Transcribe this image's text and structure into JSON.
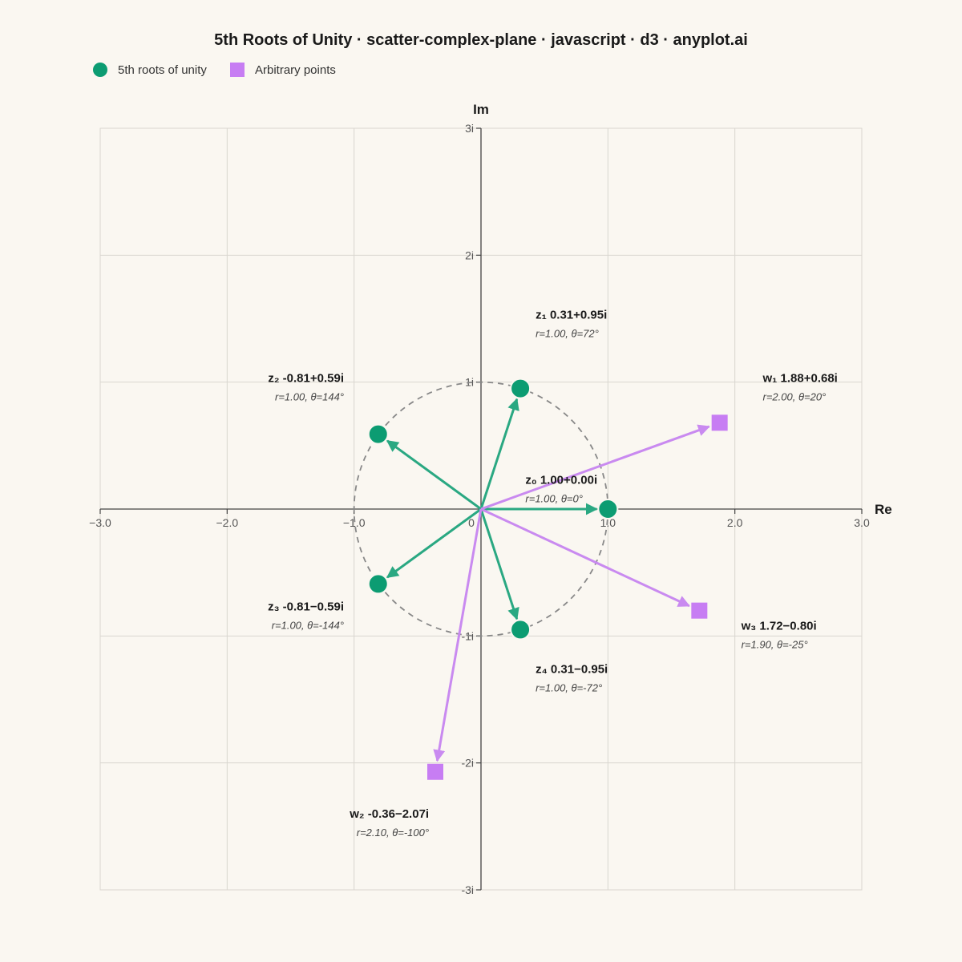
{
  "chart_data": {
    "type": "scatter",
    "title": "5th Roots of Unity · scatter-complex-plane · javascript · d3 · anyplot.ai",
    "xlabel": "Re",
    "ylabel": "Im",
    "xlim": [
      -3,
      3
    ],
    "ylim": [
      -3,
      3
    ],
    "grid": true,
    "legend_position": "top-left",
    "x_ticks": [
      {
        "value": -3,
        "label": "−3.0"
      },
      {
        "value": -2,
        "label": "−2.0"
      },
      {
        "value": -1,
        "label": "−1.0"
      },
      {
        "value": 0,
        "label": "0"
      },
      {
        "value": 1,
        "label": "1.0"
      },
      {
        "value": 2,
        "label": "2.0"
      },
      {
        "value": 3,
        "label": "3.0"
      }
    ],
    "y_ticks": [
      {
        "value": 3,
        "label": "3i"
      },
      {
        "value": 2,
        "label": "2i"
      },
      {
        "value": 1,
        "label": "1i"
      },
      {
        "value": -1,
        "label": "-1i"
      },
      {
        "value": -2,
        "label": "-2i"
      },
      {
        "value": -3,
        "label": "-3i"
      }
    ],
    "unit_circle": {
      "radius": 1,
      "style": "dashed"
    },
    "series": [
      {
        "name": "5th roots of unity",
        "marker": "circle",
        "color": "#0C9C72",
        "vector_color": "#2AA882",
        "points": [
          {
            "x": 1.0,
            "y": 0.0,
            "label": "z₀ 1.00+0.00i",
            "sub": "r=1.00, θ=0°",
            "anchor": "start",
            "lx": 0.35,
            "ly": 0.2
          },
          {
            "x": 0.31,
            "y": 0.95,
            "label": "z₁ 0.31+0.95i",
            "sub": "r=1.00, θ=72°",
            "anchor": "start",
            "lx": 0.43,
            "ly": 1.5
          },
          {
            "x": -0.81,
            "y": 0.59,
            "label": "z₂ -0.81+0.59i",
            "sub": "r=1.00, θ=144°",
            "anchor": "end",
            "lx": -1.08,
            "ly": 1.0
          },
          {
            "x": -0.81,
            "y": -0.59,
            "label": "z₃ -0.81−0.59i",
            "sub": "r=1.00, θ=-144°",
            "anchor": "end",
            "lx": -1.08,
            "ly": -0.8
          },
          {
            "x": 0.31,
            "y": -0.95,
            "label": "z₄ 0.31−0.95i",
            "sub": "r=1.00, θ=-72°",
            "anchor": "start",
            "lx": 0.43,
            "ly": -1.29
          }
        ]
      },
      {
        "name": "Arbitrary points",
        "marker": "square",
        "color": "#C77DF3",
        "vector_color": "#C98AF0",
        "points": [
          {
            "x": 1.88,
            "y": 0.68,
            "label": "w₁ 1.88+0.68i",
            "sub": "r=2.00, θ=20°",
            "anchor": "start",
            "lx": 2.22,
            "ly": 1.0
          },
          {
            "x": -0.36,
            "y": -2.07,
            "label": "w₂ -0.36−2.07i",
            "sub": "r=2.10, θ=-100°",
            "anchor": "end",
            "lx": -0.41,
            "ly": -2.43
          },
          {
            "x": 1.72,
            "y": -0.8,
            "label": "w₃ 1.72−0.80i",
            "sub": "r=1.90, θ=-25°",
            "anchor": "start",
            "lx": 2.05,
            "ly": -0.95
          }
        ]
      }
    ]
  }
}
